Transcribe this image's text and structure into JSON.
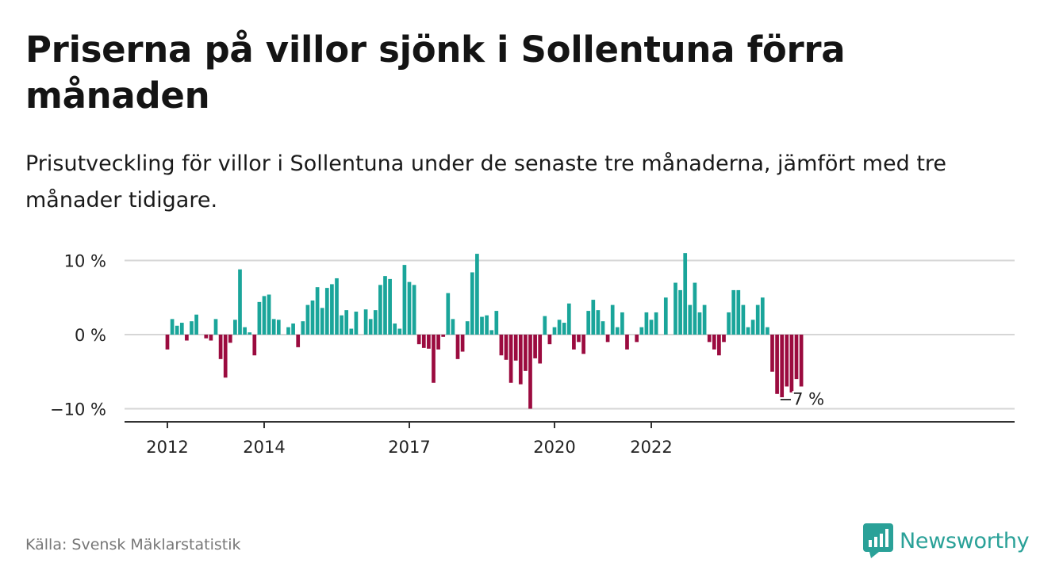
{
  "title": "Priserna på villor sjönk i Sollentuna förra månaden",
  "subtitle": "Prisutveckling för villor i Sollentuna under de senaste tre månaderna, jämfört med tre månader tidigare.",
  "source": "Källa: Svensk Mäklarstatistik",
  "brand": "Newsworthy",
  "colors": {
    "positive": "#1aa59a",
    "negative": "#9b0b3f",
    "brand": "#2aa198"
  },
  "chart_data": {
    "type": "bar",
    "ylim": [
      -11,
      11
    ],
    "y_ticks": [
      {
        "value": 10,
        "label": "10 %"
      },
      {
        "value": 0,
        "label": "0 %"
      },
      {
        "value": -10,
        "label": "−10 %"
      }
    ],
    "x_ticks": [
      {
        "index": 0,
        "label": "2012"
      },
      {
        "index": 20,
        "label": "2014"
      },
      {
        "index": 50,
        "label": "2017"
      },
      {
        "index": 80,
        "label": "2020"
      },
      {
        "index": 100,
        "label": "2022"
      }
    ],
    "values": [
      -2,
      2.1,
      1.2,
      1.6,
      -0.8,
      1.8,
      2.7,
      0,
      -0.5,
      -0.8,
      2.1,
      -3.3,
      -5.8,
      -1.1,
      2.0,
      8.8,
      1.0,
      0.3,
      -2.8,
      4.4,
      5.2,
      5.4,
      2.1,
      2.0,
      0,
      1.0,
      1.5,
      -1.7,
      1.8,
      4.0,
      4.6,
      6.4,
      3.6,
      6.3,
      6.8,
      7.6,
      2.6,
      3.3,
      0.8,
      3.1,
      0,
      3.4,
      2.1,
      3.3,
      6.7,
      7.9,
      7.5,
      1.5,
      0.8,
      9.4,
      7.1,
      6.7,
      -1.3,
      -1.8,
      -1.9,
      -6.5,
      -2.0,
      -0.3,
      5.6,
      2.1,
      -3.3,
      -2.3,
      1.8,
      8.4,
      10.9,
      2.4,
      2.6,
      0.6,
      3.2,
      -2.8,
      -3.4,
      -6.5,
      -3.5,
      -6.7,
      -4.9,
      -10.0,
      -3.2,
      -3.9,
      2.5,
      -1.3,
      1.0,
      2.0,
      1.6,
      4.2,
      -2.0,
      -1.0,
      -2.6,
      3.2,
      4.7,
      3.3,
      1.8,
      -1.0,
      4.0,
      1.0,
      3.0,
      -2.0,
      0,
      -1.0,
      1.0,
      3.0,
      2.0,
      3.0,
      0,
      5.0,
      0,
      7.0,
      6.0,
      11.0,
      4.0,
      7.0,
      3.0,
      4.0,
      -1.0,
      -2.0,
      -2.8,
      -1.0,
      3.0,
      6.0,
      6.0,
      4.0,
      1.0,
      2.0,
      4.0,
      5.0,
      1.0,
      -5.0,
      -8.0,
      -8.8,
      -7.0,
      -7.8,
      -6.0,
      -7.0
    ],
    "annotation": {
      "index": 131,
      "label": "−7 %"
    }
  }
}
